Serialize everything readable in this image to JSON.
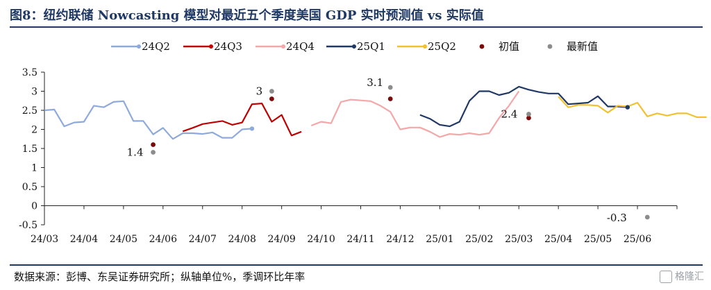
{
  "title": "图8：纽约联储 Nowcasting 模型对最近五个季度美国 GDP 实时预测值 vs 实际值",
  "source": "数据来源：彭博、东吴证券研究所；纵轴单位%，季调环比年率",
  "watermark": "格隆汇",
  "chart_data": {
    "type": "line",
    "title": "",
    "xlabel": "",
    "ylabel": "",
    "ylim": [
      -0.5,
      3.5
    ],
    "yticks": [
      3.5,
      3,
      2.5,
      2,
      1.5,
      1,
      0.5,
      0,
      -0.5
    ],
    "ytick_labels": [
      "3.5",
      "3",
      "2.5",
      "2",
      "1.5",
      "1",
      "0.5",
      "0",
      "-0.5"
    ],
    "x_range": [
      0,
      16
    ],
    "xtick_labels": [
      "24/03",
      "24/04",
      "24/05",
      "24/06",
      "24/07",
      "24/08",
      "24/09",
      "24/10",
      "24/11",
      "24/12",
      "25/01",
      "25/02",
      "25/03",
      "25/04",
      "25/05",
      "25/06"
    ],
    "legend_position": "top",
    "series": [
      {
        "name": "24Q2",
        "color": "#8eaadb",
        "x": [
          0,
          0.25,
          0.5,
          0.75,
          1,
          1.25,
          1.5,
          1.75,
          2,
          2.25,
          2.5,
          2.75,
          3,
          3.25,
          3.5,
          3.75,
          4,
          4.25,
          4.5,
          4.75,
          5,
          5.25,
          5.5,
          5.75,
          6,
          6.25,
          6.5,
          6.75,
          7.0
        ],
        "y": [
          2.5,
          2.52,
          2.08,
          2.18,
          2.2,
          2.62,
          2.58,
          2.72,
          2.74,
          2.22,
          2.22,
          1.87,
          2.04,
          1.75,
          1.9,
          1.9,
          1.88,
          1.92,
          1.78,
          1.78,
          2.0,
          2.02,
          null,
          null,
          null,
          null,
          null,
          null,
          null
        ]
      },
      {
        "name": "24Q3",
        "color": "#c00000",
        "x": [
          3.5,
          3.75,
          4,
          4.25,
          4.5,
          4.75,
          5,
          5.25,
          5.5,
          5.75,
          6,
          6.25,
          6.5
        ],
        "y": [
          1.95,
          2.04,
          2.14,
          2.18,
          2.22,
          2.12,
          2.18,
          2.66,
          2.68,
          2.2,
          2.38,
          1.84,
          1.94
        ]
      },
      {
        "name": "24Q4",
        "color": "#f4a7a8",
        "x": [
          6.75,
          7,
          7.25,
          7.5,
          7.75,
          8,
          8.25,
          8.5,
          8.75,
          9,
          9.25,
          9.5,
          9.75,
          10,
          10.25,
          10.5,
          10.75,
          11,
          11.25,
          11.5,
          11.75,
          12
        ],
        "y": [
          2.1,
          2.2,
          2.16,
          2.72,
          2.78,
          2.76,
          2.74,
          2.62,
          2.46,
          2.0,
          2.05,
          2.05,
          1.94,
          1.8,
          1.88,
          1.86,
          1.9,
          1.86,
          1.9,
          2.3,
          2.62,
          3.0
        ]
      },
      {
        "name": "25Q1",
        "color": "#1f3864",
        "x": [
          9.5,
          9.75,
          10,
          10.25,
          10.5,
          10.75,
          11,
          11.25,
          11.5,
          11.75,
          12,
          12.25,
          12.5,
          12.75,
          13,
          13.25,
          13.5,
          13.75,
          14,
          14.25,
          14.5,
          14.75
        ],
        "y": [
          2.38,
          2.28,
          2.12,
          2.08,
          2.2,
          2.75,
          3.0,
          3.0,
          2.9,
          2.96,
          3.12,
          3.04,
          2.98,
          2.94,
          2.94,
          2.66,
          2.68,
          2.7,
          2.87,
          2.6,
          2.6,
          2.58
        ]
      },
      {
        "name": "25Q2",
        "color": "#f2c12e",
        "x": [
          13,
          13.25,
          13.5,
          13.75,
          14,
          14.25,
          14.5,
          14.75,
          15,
          15.25,
          15.5,
          15.75,
          16,
          16.25,
          16.5,
          16.75
        ],
        "y": [
          2.86,
          2.58,
          2.64,
          2.64,
          2.62,
          2.44,
          2.62,
          2.6,
          2.7,
          2.34,
          2.42,
          2.36,
          2.42,
          2.42,
          2.32,
          2.32
        ]
      }
    ],
    "markers": [
      {
        "name": "初值",
        "color": "#7b0a0a",
        "points": [
          {
            "x": 2.75,
            "y": 1.6
          },
          {
            "x": 5.75,
            "y": 2.8
          },
          {
            "x": 8.75,
            "y": 2.8
          },
          {
            "x": 12.25,
            "y": 2.3
          }
        ]
      },
      {
        "name": "最新值",
        "color": "#8c8c8c",
        "points": [
          {
            "x": 2.75,
            "y": 1.4
          },
          {
            "x": 5.75,
            "y": 3.0
          },
          {
            "x": 8.75,
            "y": 3.1
          },
          {
            "x": 12.25,
            "y": 2.4
          },
          {
            "x": 15.25,
            "y": -0.3
          }
        ]
      }
    ],
    "annotations": [
      {
        "text": "1.4",
        "x": 2.75,
        "y": 1.4
      },
      {
        "text": "3",
        "x": 5.75,
        "y": 3.0
      },
      {
        "text": "3.1",
        "x": 8.75,
        "y": 3.1
      },
      {
        "text": "2.4",
        "x": 12.25,
        "y": 2.4
      },
      {
        "text": "-0.3",
        "x": 15.25,
        "y": -0.3
      }
    ]
  }
}
